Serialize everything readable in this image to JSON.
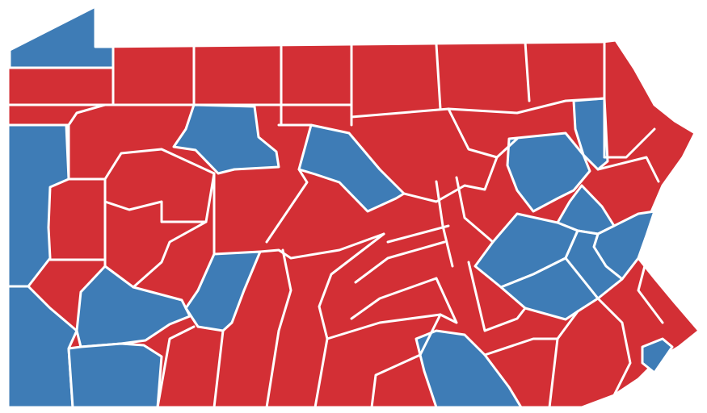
{
  "map": {
    "colors": {
      "republican": "#d32f35",
      "democratic": "#3e7cb6",
      "border": "#ffffff",
      "background": "#ffffff"
    }
  }
}
